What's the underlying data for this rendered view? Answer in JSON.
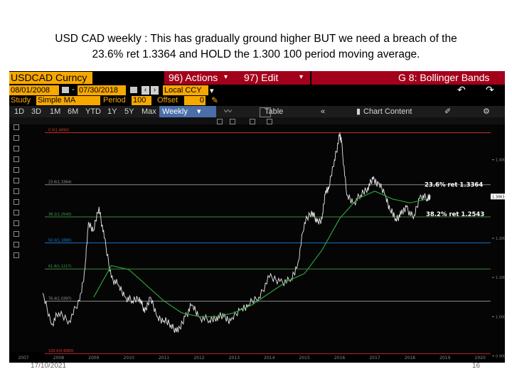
{
  "caption": {
    "line1": "USD CAD weekly : This has gradually ground higher BUT we need a breach of the",
    "line2": "23.6% ret 1.3364 and HOLD the 1.300 100 period moving average."
  },
  "terminal": {
    "security": "USDCAD Curncy",
    "actions_label": "96) Actions",
    "actions_arrow": "▾",
    "edit_label": "97) Edit",
    "edit_arrow": "▾",
    "function_title": "G 8: Bollinger Bands",
    "date_start": "08/01/2008",
    "date_end": "07/30/2018",
    "date_sep": "-",
    "currency": "Local CCY",
    "study_label": "Study",
    "study_value": "Simple MA",
    "period_label": "Period",
    "period_value": "100",
    "offset_label": "Offset",
    "offset_value": "0",
    "ranges": [
      "1D",
      "3D",
      "1M",
      "6M",
      "YTD",
      "1Y",
      "5Y",
      "Max"
    ],
    "frequency": "Weekly",
    "table_label": "Table",
    "chart_content_label": "Chart Content"
  },
  "chart_data": {
    "type": "line",
    "x_ticks": [
      "2007",
      "2008",
      "2009",
      "2010",
      "2011",
      "2012",
      "2013",
      "2014",
      "2015",
      "2016",
      "2017",
      "2018",
      "2019",
      "2020"
    ],
    "xlim": [
      2007.0,
      2020.3
    ],
    "ylim": [
      0.91,
      1.49
    ],
    "y_ticks": [
      "1.4000",
      "1.2000",
      "1.1000",
      "1.0000",
      "0.9000"
    ],
    "price_tag": "1.3063",
    "annotations": [
      "23.6% ret 1.3364",
      "38.2% ret 1.2543"
    ],
    "fib_levels": [
      {
        "label": "0.0(1.4690)",
        "value": 1.469,
        "color": "#e53935"
      },
      {
        "label": "23.6(1.3364)",
        "value": 1.3364,
        "color": "#9e9e9e"
      },
      {
        "label": "38.2(1.2543)",
        "value": 1.2543,
        "color": "#43a047"
      },
      {
        "label": "50.0(1.1880)",
        "value": 1.188,
        "color": "#1e88e5"
      },
      {
        "label": "61.8(1.1217)",
        "value": 1.1217,
        "color": "#43a047"
      },
      {
        "label": "76.4(1.0397)",
        "value": 1.0397,
        "color": "#9e9e9e"
      },
      {
        "label": "100.0(0.9060)",
        "value": 0.906,
        "color": "#e53935"
      }
    ],
    "series": [
      {
        "x": [
          2007.55,
          2007.8,
          2008.0,
          2008.3,
          2008.6,
          2008.75,
          2008.85,
          2009.0,
          2009.15,
          2009.3,
          2009.5,
          2009.7,
          2009.9,
          2010.1,
          2010.3,
          2010.45,
          2010.6,
          2010.8,
          2011.0,
          2011.2,
          2011.4,
          2011.6,
          2011.8,
          2012.0,
          2012.3,
          2012.5,
          2012.7,
          2012.9,
          2013.2,
          2013.4,
          2013.7,
          2014.0,
          2014.3,
          2014.6,
          2014.8,
          2015.0,
          2015.2,
          2015.35,
          2015.5,
          2015.6,
          2015.7,
          2015.85,
          2016.0,
          2016.05,
          2016.2,
          2016.4,
          2016.6,
          2016.8,
          2016.95,
          2017.1,
          2017.3,
          2017.45,
          2017.6,
          2017.75,
          2017.9,
          2018.1,
          2018.3,
          2018.5,
          2018.58
        ],
        "y": [
          1.06,
          0.98,
          1.01,
          0.99,
          1.04,
          1.12,
          1.24,
          1.22,
          1.28,
          1.2,
          1.1,
          1.08,
          1.05,
          1.04,
          1.05,
          1.01,
          1.05,
          1.0,
          0.99,
          0.98,
          0.96,
          1.0,
          1.03,
          1.0,
          0.99,
          1.0,
          1.0,
          0.99,
          1.02,
          1.03,
          1.05,
          1.1,
          1.09,
          1.09,
          1.13,
          1.24,
          1.27,
          1.24,
          1.25,
          1.32,
          1.33,
          1.4,
          1.46,
          1.45,
          1.31,
          1.29,
          1.31,
          1.33,
          1.35,
          1.34,
          1.31,
          1.27,
          1.25,
          1.26,
          1.28,
          1.25,
          1.31,
          1.3,
          1.31
        ]
      },
      {
        "x": [
          2009.0,
          2009.5,
          2010.0,
          2010.5,
          2011.0,
          2011.5,
          2012.0,
          2012.5,
          2013.0,
          2013.5,
          2014.0,
          2014.5,
          2015.0,
          2015.5,
          2016.0,
          2016.5,
          2017.0,
          2017.5,
          2018.0,
          2018.5
        ],
        "y": [
          1.05,
          1.13,
          1.12,
          1.08,
          1.04,
          1.01,
          1.0,
          1.0,
          1.01,
          1.03,
          1.06,
          1.09,
          1.11,
          1.17,
          1.25,
          1.3,
          1.32,
          1.3,
          1.29,
          1.3
        ]
      }
    ]
  }
}
